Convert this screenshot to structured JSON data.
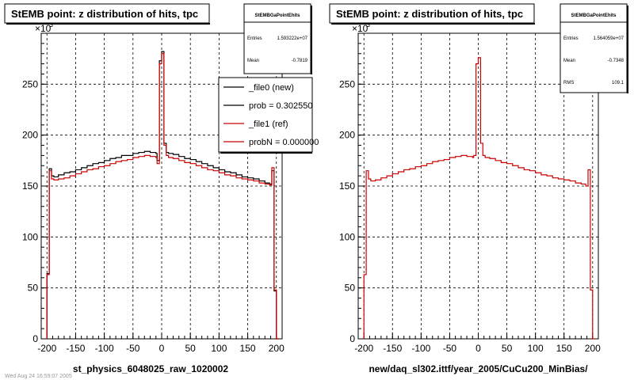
{
  "colors": {
    "data_new": "#000000",
    "data_ref": "#cc0000",
    "grid": "#000000"
  },
  "chart_data": [
    {
      "type": "line",
      "title": "StEMB point: z distribution of hits, tpc",
      "xlabel": "st_physics_6048025_raw_1020002",
      "ylabel": "",
      "y_multiplier": "×10^3",
      "y_exp": "×10",
      "y_exp_power": "3",
      "xlim": [
        -210,
        210
      ],
      "ylim": [
        0,
        300
      ],
      "x_ticks": [
        "-200",
        "-150",
        "-100",
        "-50",
        "0",
        "50",
        "100",
        "150",
        "200"
      ],
      "y_ticks": [
        "0",
        "50",
        "100",
        "150",
        "200",
        "250"
      ],
      "stats": {
        "name": "StEMBGaPointEhits",
        "entries_label": "Entries",
        "entries": "1.593222e+07",
        "mean_label": "Mean",
        "mean": "-0.7819"
      },
      "legend": {
        "items": [
          {
            "label": "_file0 (new)",
            "color": "#000000"
          },
          {
            "label": "prob = 0.302550",
            "color": "#000000"
          },
          {
            "label": "_file1 (ref)",
            "color": "#cc0000"
          },
          {
            "label": "probN = 0.000000",
            "color": "#cc0000"
          }
        ]
      },
      "x": [
        -200,
        -196,
        -192,
        -188,
        -180,
        -170,
        -160,
        -150,
        -140,
        -130,
        -120,
        -110,
        -100,
        -90,
        -80,
        -70,
        -60,
        -50,
        -40,
        -30,
        -20,
        -10,
        -8,
        -4,
        0,
        4,
        8,
        12,
        20,
        30,
        40,
        50,
        60,
        70,
        80,
        90,
        100,
        110,
        120,
        130,
        140,
        150,
        160,
        170,
        180,
        188,
        192,
        196,
        200
      ],
      "series": [
        {
          "name": "_file0 (new)",
          "values": [
            64,
            167,
            160,
            159,
            161,
            163,
            164,
            166,
            168,
            170,
            172,
            173,
            175,
            177,
            178,
            180,
            180,
            182,
            183,
            184,
            183,
            182,
            175,
            273,
            282,
            192,
            183,
            182,
            181,
            179,
            177,
            176,
            174,
            172,
            170,
            168,
            166,
            164,
            163,
            161,
            159,
            158,
            157,
            155,
            153,
            152,
            165,
            47,
            0
          ]
        },
        {
          "name": "_file1 (ref)",
          "values": [
            63,
            165,
            157,
            156,
            157,
            158,
            160,
            162,
            164,
            166,
            167,
            169,
            170,
            172,
            174,
            175,
            176,
            178,
            179,
            180,
            179,
            178,
            172,
            270,
            280,
            190,
            180,
            178,
            177,
            175,
            173,
            172,
            170,
            168,
            166,
            165,
            163,
            161,
            160,
            158,
            157,
            156,
            155,
            153,
            152,
            151,
            168,
            48,
            0
          ]
        }
      ]
    },
    {
      "type": "line",
      "title": "StEMB point: z distribution of hits, tpc",
      "xlabel": "new/daq_sl302.ittf/year_2005/CuCu200_MinBias/",
      "ylabel": "",
      "y_multiplier": "×10^3",
      "y_exp": "×10",
      "y_exp_power": "3",
      "xlim": [
        -210,
        210
      ],
      "ylim": [
        0,
        300
      ],
      "x_ticks": [
        "-200",
        "-150",
        "-100",
        "-50",
        "0",
        "50",
        "100",
        "150",
        "200"
      ],
      "y_ticks": [
        "0",
        "50",
        "100",
        "150",
        "200",
        "250"
      ],
      "stats": {
        "name": "StEMBGaPointEhits",
        "entries_label": "Entries",
        "entries": "1.564059e+07",
        "mean_label": "Mean",
        "mean": "-0.7348",
        "rms_label": "RMS",
        "rms": "109.1"
      },
      "x": [
        -200,
        -196,
        -192,
        -188,
        -180,
        -170,
        -160,
        -150,
        -140,
        -130,
        -120,
        -110,
        -100,
        -90,
        -80,
        -70,
        -60,
        -50,
        -40,
        -30,
        -20,
        -10,
        -8,
        -4,
        0,
        4,
        8,
        12,
        20,
        30,
        40,
        50,
        60,
        70,
        80,
        90,
        100,
        110,
        120,
        130,
        140,
        150,
        160,
        170,
        180,
        188,
        192,
        196,
        200
      ],
      "series": [
        {
          "name": "",
          "values": [
            63,
            165,
            157,
            155,
            156,
            158,
            160,
            162,
            164,
            166,
            167,
            169,
            170,
            172,
            174,
            175,
            176,
            178,
            179,
            180,
            179,
            178,
            180,
            270,
            276,
            192,
            180,
            178,
            177,
            175,
            173,
            172,
            170,
            168,
            166,
            165,
            163,
            161,
            160,
            158,
            157,
            156,
            155,
            153,
            152,
            150,
            166,
            48,
            0
          ]
        }
      ]
    }
  ],
  "footer_text": "Wed Aug 24 16:59:07 2005"
}
